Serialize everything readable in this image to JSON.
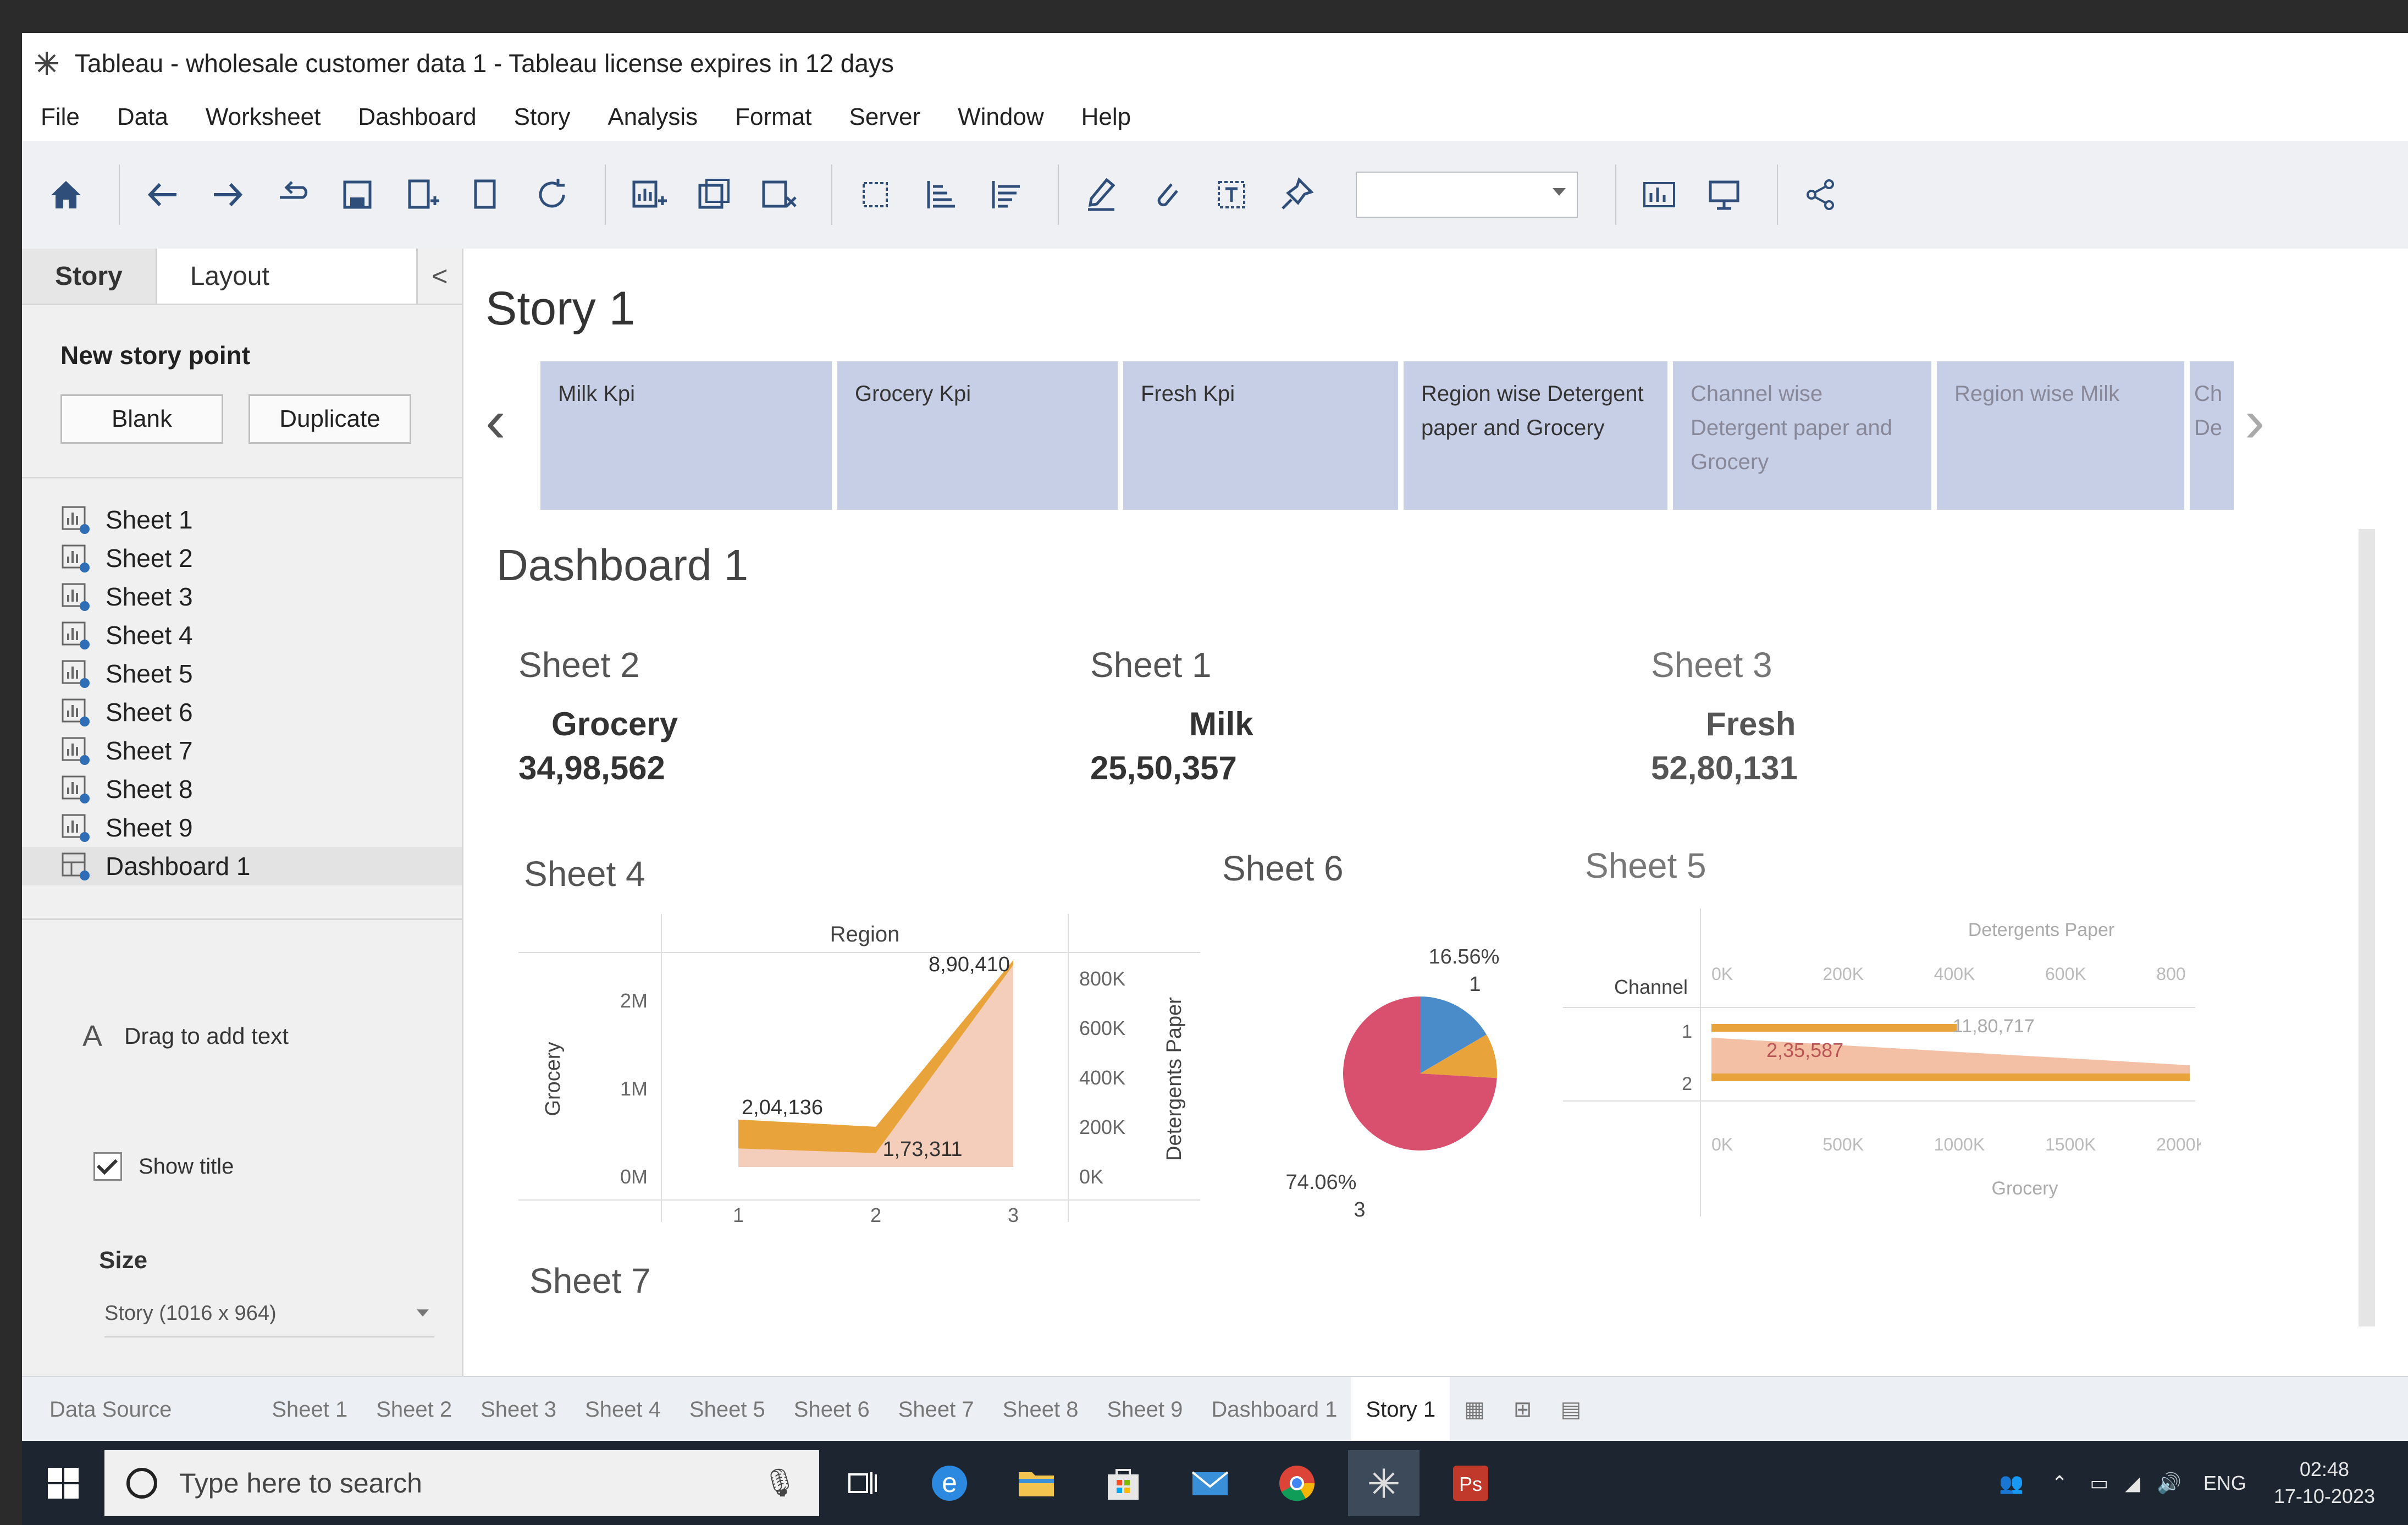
{
  "window": {
    "title": "Tableau - wholesale customer data 1 - Tableau license expires in 12 days"
  },
  "menu": [
    "File",
    "Data",
    "Worksheet",
    "Dashboard",
    "Story",
    "Analysis",
    "Format",
    "Server",
    "Window",
    "Help"
  ],
  "left_panel": {
    "tab_story": "Story",
    "tab_layout": "Layout",
    "collapse": "<",
    "new_story_point": "New story point",
    "blank": "Blank",
    "duplicate": "Duplicate",
    "items": [
      "Sheet 1",
      "Sheet 2",
      "Sheet 3",
      "Sheet 4",
      "Sheet 5",
      "Sheet 6",
      "Sheet 7",
      "Sheet 8",
      "Sheet 9",
      "Dashboard 1"
    ],
    "drag_text": "Drag to add text",
    "show_title": "Show title",
    "size_label": "Size",
    "size_value": "Story (1016 x 964)"
  },
  "story": {
    "title": "Story 1",
    "points": [
      {
        "label": "Milk Kpi"
      },
      {
        "label": "Grocery Kpi"
      },
      {
        "label": "Fresh Kpi"
      },
      {
        "label": "Region wise Detergent paper and Grocery"
      },
      {
        "label": "Channel wise Detergent paper and Grocery"
      },
      {
        "label": "Region wise Milk"
      },
      {
        "label": "Ch De"
      }
    ]
  },
  "dashboard": {
    "title": "Dashboard 1",
    "sheet2": {
      "title": "Sheet 2",
      "label": "Grocery",
      "value": "34,98,562"
    },
    "sheet1": {
      "title": "Sheet 1",
      "label": "Milk",
      "value": "25,50,357"
    },
    "sheet3": {
      "title": "Sheet 3",
      "label": "Fresh",
      "value": "52,80,131"
    },
    "sheet4_title": "Sheet 4",
    "sheet6_title": "Sheet 6",
    "sheet5_title": "Sheet 5",
    "sheet7_title": "Sheet 7"
  },
  "chart_data": [
    {
      "type": "area",
      "sheet": "Sheet 4",
      "title": "Region",
      "x": [
        1,
        2,
        3
      ],
      "series": [
        {
          "name": "Grocery",
          "values": [
            204136,
            173311,
            890410
          ],
          "color": "#e8a33a"
        },
        {
          "name": "Detergents Paper",
          "values": [
            120000,
            80000,
            880000
          ],
          "color": "#f3c9b3"
        }
      ],
      "labels": [
        "2,04,136",
        "1,73,311",
        "8,90,410"
      ],
      "ylabel_left": "Grocery",
      "ylabel_right": "Detergents Paper",
      "yticks_left": [
        "0M",
        "1M",
        "2M"
      ],
      "yticks_right": [
        "0K",
        "200K",
        "400K",
        "600K",
        "800K"
      ],
      "xticks": [
        "1",
        "2",
        "3"
      ]
    },
    {
      "type": "pie",
      "sheet": "Sheet 6",
      "slices": [
        {
          "name": "3",
          "percent": 74.06,
          "label": "74.06%",
          "color": "#d9506f"
        },
        {
          "name": "1",
          "percent": 16.56,
          "label": "16.56%",
          "color": "#4a8cc9"
        },
        {
          "name": "other",
          "percent": 9.38,
          "color": "#e8a33a"
        }
      ]
    },
    {
      "type": "bar",
      "sheet": "Sheet 5",
      "title": "Detergents Paper",
      "rowlabel": "Channel",
      "categories": [
        "1",
        "2"
      ],
      "series": [
        {
          "name": "Grocery",
          "values": [
            1180717,
            2317260
          ],
          "color": "#e8a33a"
        },
        {
          "name": "Detergents Paper",
          "values": [
            235587,
            1070000
          ],
          "color": "#f3c0a6"
        }
      ],
      "labels": [
        "11,80,717",
        "2,35,587"
      ],
      "xticks_top": [
        "0K",
        "200K",
        "400K",
        "600K",
        "800"
      ],
      "xticks_bottom": [
        "0K",
        "500K",
        "1000K",
        "1500K",
        "2000K"
      ],
      "xlabel": "Grocery"
    }
  ],
  "tabs": {
    "data_source": "Data Source",
    "sheets": [
      "Sheet 1",
      "Sheet 2",
      "Sheet 3",
      "Sheet 4",
      "Sheet 5",
      "Sheet 6",
      "Sheet 7",
      "Sheet 8",
      "Sheet 9"
    ],
    "dashboard": "Dashboard 1",
    "story": "Story 1"
  },
  "taskbar": {
    "search_placeholder": "Type here to search",
    "lang": "ENG",
    "time": "02:48",
    "date": "17-10-2023"
  }
}
